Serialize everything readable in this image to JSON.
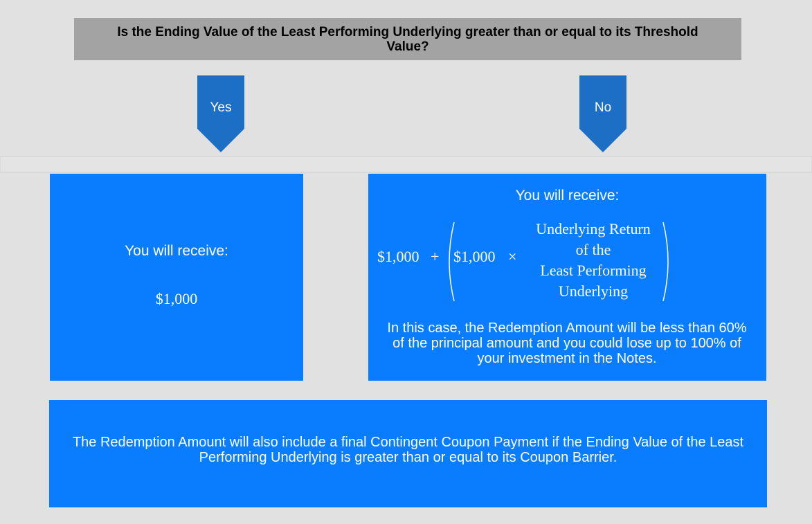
{
  "question": "Is the Ending Value of the Least Performing Underlying greater than or equal to its Threshold Value?",
  "branches": [
    {
      "label": "Yes",
      "box": {
        "heading": "You will receive:",
        "amount": "$1,000"
      }
    },
    {
      "label": "No",
      "box": {
        "heading": "You will receive:",
        "formula": {
          "base": "$1,000",
          "plus": "+",
          "multiplier": "$1,000",
          "times": "×",
          "factor": [
            "Underlying Return",
            "of the",
            "Least Performing",
            "Underlying"
          ]
        },
        "note": "In this case, the Redemption Amount will be less than 60% of the principal amount and you could lose up to 100% of your investment in the Notes."
      }
    }
  ],
  "footer": "The Redemption Amount will also include a final Contingent Coupon Payment if the Ending Value of the Least Performing Underlying is greater than or equal to its Coupon Barrier."
}
